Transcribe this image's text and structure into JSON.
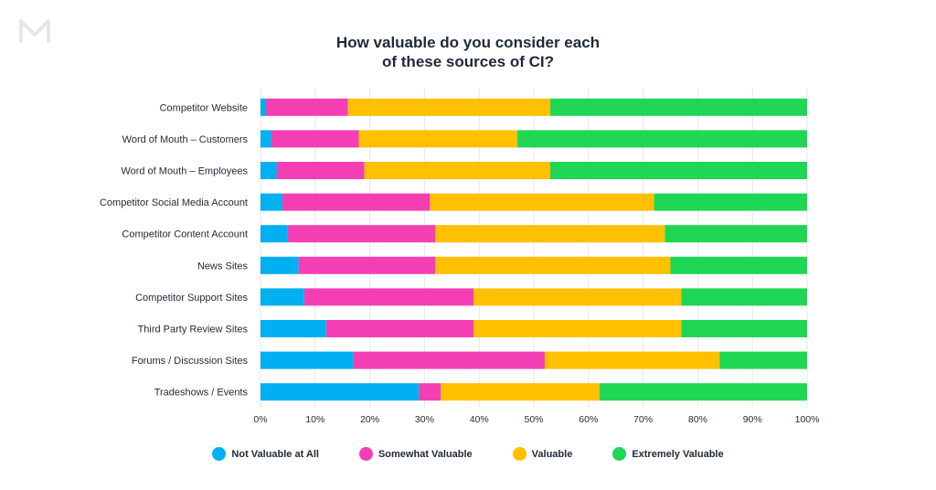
{
  "logo_text": "M",
  "chart_data": {
    "type": "bar",
    "orientation": "horizontal",
    "stacked": true,
    "title_lines": [
      "How valuable do you consider each",
      "of these sources of CI?"
    ],
    "categories": [
      "Competitor Website",
      "Word of Mouth – Customers",
      "Word of Mouth – Employees",
      "Competitor Social Media Account",
      "Competitor Content Account",
      "News Sites",
      "Competitor Support Sites",
      "Third Party Review Sites",
      "Forums / Discussion Sites",
      "Tradeshows / Events"
    ],
    "series": [
      {
        "name": "Not Valuable at All",
        "color": "#00b0f0",
        "values": [
          1,
          2,
          3,
          4,
          5,
          7,
          8,
          12,
          17,
          29
        ]
      },
      {
        "name": "Somewhat Valuable",
        "color": "#f43fb4",
        "values": [
          15,
          16,
          16,
          27,
          27,
          25,
          31,
          27,
          35,
          4
        ]
      },
      {
        "name": "Valuable",
        "color": "#ffc000",
        "values": [
          37,
          29,
          34,
          41,
          42,
          43,
          38,
          38,
          32,
          29
        ]
      },
      {
        "name": "Extremely Valuable",
        "color": "#1fd655",
        "values": [
          47,
          53,
          47,
          28,
          26,
          25,
          23,
          23,
          16,
          38
        ]
      }
    ],
    "xlim": [
      0,
      100
    ],
    "xticks": [
      "0%",
      "10%",
      "20%",
      "30%",
      "40%",
      "50%",
      "60%",
      "70%",
      "80%",
      "90%",
      "100%"
    ],
    "grid": true,
    "legend_position": "bottom"
  }
}
